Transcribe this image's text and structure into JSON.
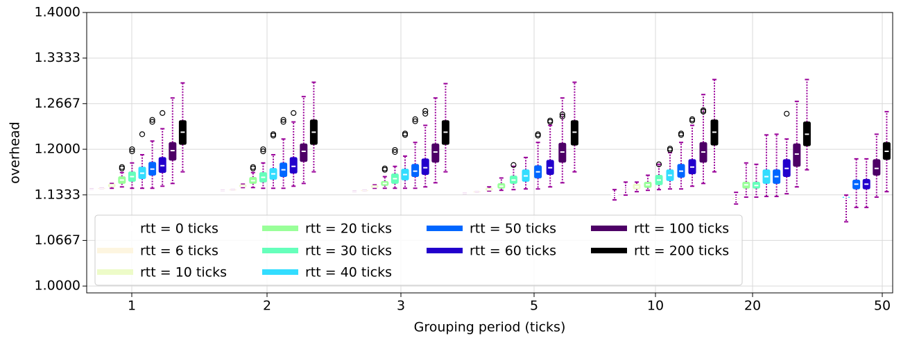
{
  "chart_data": {
    "type": "box",
    "x_label": "Grouping period (ticks)",
    "y_label": "overhead",
    "categories": [
      "1",
      "2",
      "3",
      "5",
      "10",
      "20",
      "50"
    ],
    "ylim": [
      0.99,
      1.4
    ],
    "yticks": [
      {
        "value": 1,
        "label": "1.0000"
      },
      1.0667,
      1.1333,
      {
        "value": 1.2,
        "label": "1.2000"
      },
      1.2667,
      1.3333,
      {
        "value": 1.4,
        "label": "1.4000"
      }
    ],
    "grid": true,
    "legend": "lower left",
    "whisker_color": "#990099",
    "series": [
      {
        "name": "rtt = 0 ticks",
        "color": "#ffffff",
        "median": [
          1.142,
          1.14,
          1.139,
          1.136,
          1.134,
          null,
          null
        ],
        "q1": [
          1.142,
          1.14,
          1.139,
          1.136,
          1.134,
          null,
          null
        ],
        "q3": [
          1.142,
          1.14,
          1.139,
          1.136,
          1.134,
          null,
          null
        ],
        "whislo": [
          1.142,
          1.14,
          1.139,
          1.136,
          1.126,
          null,
          null
        ],
        "whishi": [
          1.142,
          1.14,
          1.139,
          1.136,
          1.141,
          null,
          null
        ]
      },
      {
        "name": "rtt = 6 ticks",
        "color": "#fdf5e0",
        "median": [
          1.143,
          1.141,
          1.14,
          1.138,
          1.142,
          null,
          null
        ],
        "q1": [
          1.143,
          1.141,
          1.14,
          1.138,
          1.142,
          null,
          null
        ],
        "q3": [
          1.143,
          1.141,
          1.14,
          1.138,
          1.142,
          null,
          null
        ],
        "whislo": [
          1.143,
          1.141,
          1.14,
          1.138,
          1.133,
          null,
          null
        ],
        "whishi": [
          1.143,
          1.141,
          1.14,
          1.138,
          1.152,
          null,
          null
        ]
      },
      {
        "name": "rtt = 10 ticks",
        "color": "#edfbc8",
        "median": [
          1.147,
          1.146,
          1.145,
          1.141,
          1.145,
          1.128,
          null
        ],
        "q1": [
          1.145,
          1.145,
          1.144,
          1.14,
          1.142,
          1.128,
          null
        ],
        "q3": [
          1.149,
          1.148,
          1.147,
          1.143,
          1.149,
          1.128,
          null
        ],
        "whislo": [
          1.143,
          1.144,
          1.143,
          1.139,
          1.138,
          1.12,
          null
        ],
        "whishi": [
          1.15,
          1.149,
          1.148,
          1.145,
          1.152,
          1.137,
          null
        ]
      },
      {
        "name": "rtt = 20 ticks",
        "color": "#99ff99",
        "median": [
          1.155,
          1.154,
          1.15,
          1.146,
          1.148,
          1.148,
          null
        ],
        "q1": [
          1.15,
          1.15,
          1.147,
          1.143,
          1.144,
          1.143,
          null
        ],
        "q3": [
          1.16,
          1.159,
          1.153,
          1.15,
          1.152,
          1.152,
          null
        ],
        "whislo": [
          1.145,
          1.144,
          1.143,
          1.14,
          1.14,
          1.13,
          null
        ],
        "whishi": [
          1.166,
          1.166,
          1.16,
          1.158,
          1.162,
          1.18,
          null
        ],
        "outliers": [
          [
            1.172,
            1.174
          ],
          [
            1.172,
            1.174
          ],
          [
            1.17,
            1.172
          ],
          [],
          [],
          [],
          []
        ]
      },
      {
        "name": "rtt = 30 ticks",
        "color": "#66ffbb",
        "median": [
          1.16,
          1.159,
          1.157,
          1.155,
          1.155,
          1.147,
          null
        ],
        "q1": [
          1.153,
          1.152,
          1.15,
          1.15,
          1.148,
          1.143,
          null
        ],
        "q3": [
          1.167,
          1.166,
          1.164,
          1.161,
          1.162,
          1.152,
          null
        ],
        "whislo": [
          1.143,
          1.143,
          1.143,
          1.141,
          1.141,
          1.13,
          null
        ],
        "whishi": [
          1.18,
          1.18,
          1.175,
          1.175,
          1.178,
          1.178,
          null
        ],
        "outliers": [
          [
            1.197,
            1.2
          ],
          [
            1.197,
            1.2
          ],
          [
            1.196,
            1.199
          ],
          [
            1.177
          ],
          [
            1.178
          ],
          [],
          []
        ]
      },
      {
        "name": "rtt = 40 ticks",
        "color": "#33ddff",
        "median": [
          1.165,
          1.164,
          1.163,
          1.161,
          1.162,
          1.16,
          1.13
        ],
        "q1": [
          1.157,
          1.156,
          1.155,
          1.153,
          1.154,
          1.15,
          1.13
        ],
        "q3": [
          1.174,
          1.172,
          1.171,
          1.17,
          1.17,
          1.17,
          1.13
        ],
        "whislo": [
          1.143,
          1.143,
          1.143,
          1.142,
          1.142,
          1.131,
          1.094
        ],
        "whishi": [
          1.192,
          1.192,
          1.19,
          1.188,
          1.195,
          1.221,
          1.133
        ],
        "outliers": [
          [
            1.222
          ],
          [
            1.22,
            1.222
          ],
          [
            1.221,
            1.223
          ],
          [],
          [
            1.199,
            1.201
          ],
          [],
          []
        ]
      },
      {
        "name": "rtt = 50 ticks",
        "color": "#0066ff",
        "median": [
          1.171,
          1.17,
          1.168,
          1.167,
          1.168,
          1.16,
          1.149
        ],
        "q1": [
          1.162,
          1.16,
          1.16,
          1.158,
          1.159,
          1.15,
          1.142
        ],
        "q3": [
          1.181,
          1.18,
          1.178,
          1.176,
          1.178,
          1.17,
          1.155
        ],
        "whislo": [
          1.143,
          1.143,
          1.143,
          1.142,
          1.142,
          1.131,
          1.115
        ],
        "whishi": [
          1.212,
          1.215,
          1.21,
          1.21,
          1.21,
          1.222,
          1.186
        ],
        "outliers": [
          [
            1.24,
            1.243
          ],
          [
            1.24,
            1.243
          ],
          [
            1.241,
            1.244
          ],
          [
            1.22,
            1.222
          ],
          [
            1.221,
            1.223
          ],
          [],
          []
        ]
      },
      {
        "name": "rtt = 60 ticks",
        "color": "#2200cc",
        "median": [
          1.176,
          1.175,
          1.173,
          1.173,
          1.174,
          1.172,
          1.149
        ],
        "q1": [
          1.166,
          1.165,
          1.163,
          1.163,
          1.164,
          1.16,
          1.142
        ],
        "q3": [
          1.188,
          1.188,
          1.186,
          1.184,
          1.185,
          1.185,
          1.156
        ],
        "whislo": [
          1.146,
          1.146,
          1.145,
          1.145,
          1.146,
          1.135,
          1.115
        ],
        "whishi": [
          1.23,
          1.24,
          1.235,
          1.235,
          1.235,
          1.215,
          1.186
        ],
        "outliers": [
          [
            1.253
          ],
          [
            1.253
          ],
          [
            1.252,
            1.256
          ],
          [
            1.24,
            1.242
          ],
          [
            1.242,
            1.244
          ],
          [
            1.252
          ],
          []
        ]
      },
      {
        "name": "rtt = 100 ticks",
        "color": "#4d0066",
        "median": [
          1.198,
          1.197,
          1.196,
          1.196,
          1.196,
          1.193,
          1.172
        ],
        "q1": [
          1.184,
          1.182,
          1.181,
          1.181,
          1.181,
          1.175,
          1.162
        ],
        "q3": [
          1.21,
          1.208,
          1.208,
          1.209,
          1.21,
          1.208,
          1.185
        ],
        "whislo": [
          1.15,
          1.15,
          1.151,
          1.151,
          1.15,
          1.145,
          1.13
        ],
        "whishi": [
          1.275,
          1.277,
          1.275,
          1.275,
          1.28,
          1.27,
          1.222
        ],
        "outliers": [
          [],
          [],
          [],
          [
            1.248,
            1.251
          ],
          [
            1.255,
            1.257
          ],
          [],
          []
        ]
      },
      {
        "name": "rtt = 200 ticks",
        "color": "#000000",
        "median": [
          1.225,
          1.225,
          1.225,
          1.225,
          1.225,
          1.222,
          1.197
        ],
        "q1": [
          1.207,
          1.207,
          1.207,
          1.206,
          1.206,
          1.205,
          1.185
        ],
        "q3": [
          1.242,
          1.243,
          1.242,
          1.242,
          1.243,
          1.24,
          1.21
        ],
        "whislo": [
          1.167,
          1.167,
          1.167,
          1.167,
          1.167,
          1.17,
          1.138
        ],
        "whishi": [
          1.297,
          1.298,
          1.296,
          1.298,
          1.302,
          1.302,
          1.255
        ]
      }
    ]
  }
}
